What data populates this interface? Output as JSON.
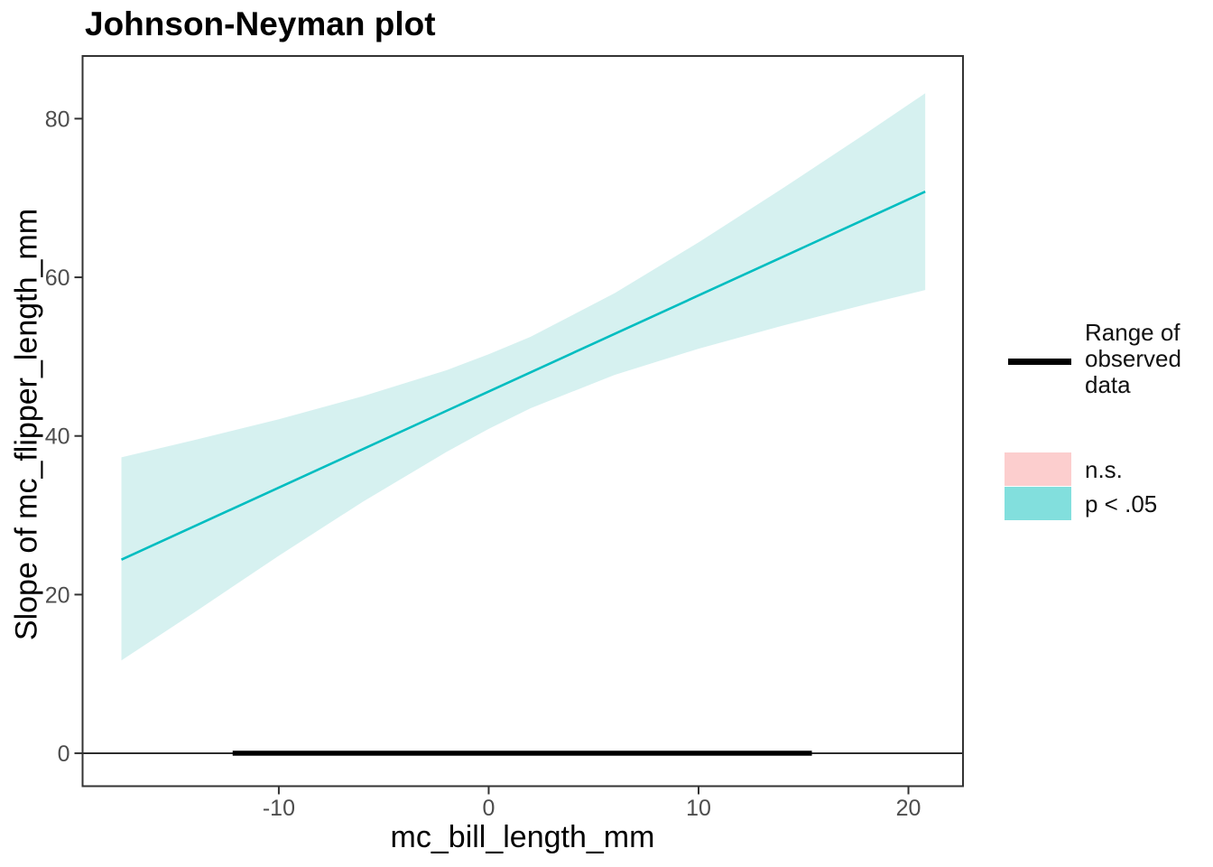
{
  "title": "Johnson-Neyman plot",
  "axes": {
    "x": {
      "label": "mc_bill_length_mm",
      "ticks": [
        "-10",
        "0",
        "10",
        "20"
      ]
    },
    "y": {
      "label": "Slope of mc_flipper_length_mm",
      "ticks": [
        "0",
        "20",
        "40",
        "60",
        "80"
      ]
    }
  },
  "legend": {
    "range_of_observed_data": "Range of observed data",
    "ns": "n.s.",
    "sig": "p < .05"
  },
  "colors": {
    "line": "#00BDC0",
    "ribbon": "#D6F1F0",
    "sig_swatch": "#82DFDD",
    "ns_swatch": "#FCCECE",
    "observed_range": "#000000",
    "axis_text": "#4D4D4D",
    "panel_border": "#333333"
  },
  "chart_data": {
    "type": "line",
    "title": "Johnson-Neyman plot",
    "xlabel": "mc_bill_length_mm",
    "ylabel": "Slope of mc_flipper_length_mm",
    "xlim": [
      -19.35,
      22.6
    ],
    "ylim": [
      -4.15,
      87.9
    ],
    "xticks": [
      -10,
      0,
      10,
      20
    ],
    "yticks": [
      0,
      20,
      40,
      60,
      80
    ],
    "grid": false,
    "legend_position": "right",
    "series": [
      {
        "name": "slope_of_mc_flipper_length_mm",
        "significance": "p < .05",
        "x": [
          -17.5,
          20.8
        ],
        "y": [
          24.4,
          70.8
        ]
      }
    ],
    "ribbon": {
      "significance": "p < .05",
      "x": [
        -17.5,
        -14.0,
        -10.0,
        -6.0,
        -2.0,
        0.0,
        2.0,
        6.0,
        10.0,
        14.0,
        18.0,
        20.8
      ],
      "upper": [
        37.3,
        39.5,
        42.1,
        45.0,
        48.3,
        50.3,
        52.5,
        58.0,
        64.4,
        71.2,
        78.2,
        83.2
      ],
      "lower": [
        11.7,
        17.8,
        24.9,
        31.7,
        38.0,
        40.9,
        43.5,
        47.7,
        51.0,
        53.9,
        56.6,
        58.4
      ]
    },
    "zero_line_y": 0,
    "observed_data_range": {
      "y": 0,
      "x_start": -12.2,
      "x_end": 15.4
    }
  }
}
